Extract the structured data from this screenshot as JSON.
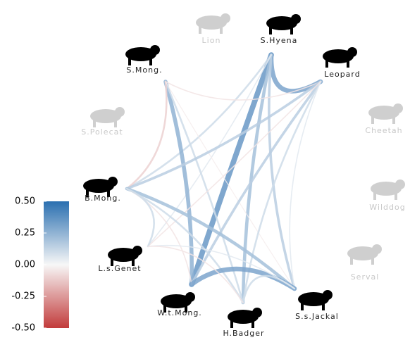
{
  "nodes": [
    {
      "label": "Lion",
      "active": false
    },
    {
      "label": "S.Hyena",
      "active": true
    },
    {
      "label": "Leopard",
      "active": true
    },
    {
      "label": "Cheetah",
      "active": false
    },
    {
      "label": "Wilddog",
      "active": false
    },
    {
      "label": "Serval",
      "active": false
    },
    {
      "label": "S.s.Jackal",
      "active": true
    },
    {
      "label": "H.Badger",
      "active": true
    },
    {
      "label": "W.t.Mong.",
      "active": true
    },
    {
      "label": "L.s.Genet",
      "active": true
    },
    {
      "label": "B.Mong.",
      "active": true
    },
    {
      "label": "S.Polecat",
      "active": false
    },
    {
      "label": "S.Mong.",
      "active": true
    }
  ],
  "edges": [
    {
      "source": 1,
      "target": 2,
      "value": 0.3
    },
    {
      "source": 1,
      "target": 8,
      "value": 0.35
    },
    {
      "source": 1,
      "target": 7,
      "value": 0.2
    },
    {
      "source": 1,
      "target": 6,
      "value": 0.15
    },
    {
      "source": 1,
      "target": 10,
      "value": 0.1
    },
    {
      "source": 1,
      "target": 9,
      "value": 0.05
    },
    {
      "source": 12,
      "target": 8,
      "value": 0.25
    },
    {
      "source": 12,
      "target": 7,
      "value": 0.1
    },
    {
      "source": 12,
      "target": 2,
      "value": -0.05
    },
    {
      "source": 12,
      "target": 10,
      "value": -0.1
    },
    {
      "source": 12,
      "target": 6,
      "value": -0.03
    },
    {
      "source": 2,
      "target": 10,
      "value": 0.15
    },
    {
      "source": 2,
      "target": 8,
      "value": 0.15
    },
    {
      "source": 2,
      "target": 7,
      "value": 0.1
    },
    {
      "source": 2,
      "target": 6,
      "value": 0.05
    },
    {
      "source": 2,
      "target": 9,
      "value": -0.05
    },
    {
      "source": 10,
      "target": 6,
      "value": 0.2
    },
    {
      "source": 10,
      "target": 7,
      "value": 0.1
    },
    {
      "source": 10,
      "target": 8,
      "value": -0.05
    },
    {
      "source": 10,
      "target": 9,
      "value": 0.1
    },
    {
      "source": 8,
      "target": 6,
      "value": 0.3
    },
    {
      "source": 7,
      "target": 6,
      "value": 0.1
    },
    {
      "source": 9,
      "target": 6,
      "value": 0.05
    },
    {
      "source": 9,
      "target": 7,
      "value": -0.05
    }
  ],
  "colorbar": {
    "lim": [
      -0.5,
      0.5
    ],
    "colors": [
      "#c23b3b",
      "#f7f7f7",
      "#2a6fb0"
    ],
    "ticks": [
      {
        "value": 0.5,
        "label": "0.50"
      },
      {
        "value": 0.25,
        "label": "0.25"
      },
      {
        "value": 0,
        "label": "0.00"
      },
      {
        "value": -0.25,
        "label": "-0.25"
      },
      {
        "value": -0.5,
        "label": "-0.50"
      }
    ]
  }
}
